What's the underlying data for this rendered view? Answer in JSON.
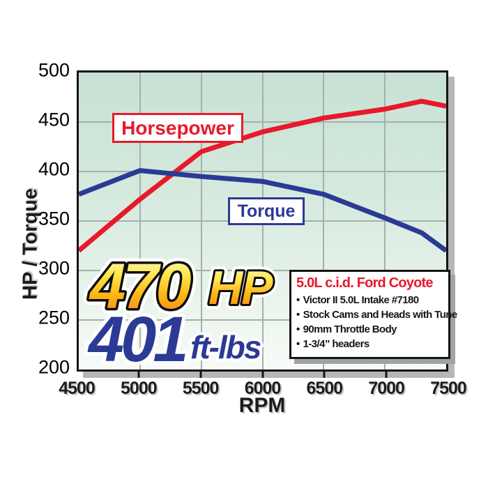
{
  "chart_data": {
    "type": "line",
    "title": "",
    "xlabel": "RPM",
    "ylabel": "HP / Torque",
    "xlim": [
      4500,
      7500
    ],
    "ylim": [
      200,
      500
    ],
    "x_ticks": [
      "4500",
      "5000",
      "5500",
      "6000",
      "6500",
      "7000",
      "7500"
    ],
    "y_ticks": [
      "500",
      "450",
      "400",
      "350",
      "300",
      "250",
      "200"
    ],
    "grid": true,
    "legend_position": "labeled boxes inside plot",
    "x": [
      4500,
      5000,
      5500,
      6000,
      6500,
      7000,
      7300,
      7500
    ],
    "series": [
      {
        "name": "Horsepower",
        "color": "#e8192b",
        "values": [
          320,
          372,
          420,
          440,
          454,
          463,
          471,
          466
        ]
      },
      {
        "name": "Torque",
        "color": "#2b3a94",
        "values": [
          377,
          401,
          395,
          390,
          377,
          353,
          338,
          320
        ]
      }
    ]
  },
  "curve_labels": {
    "horsepower": "Horsepower",
    "torque": "Torque"
  },
  "callout": {
    "hp_value": "470",
    "hp_unit": "HP",
    "tq_value": "401",
    "tq_unit": "ft-lbs"
  },
  "info_box": {
    "title": "5.0L c.i.d. Ford Coyote",
    "bullet_char": "•",
    "bullets": [
      "Victor II 5.0L Intake #7180",
      "Stock Cams and Heads with Tune",
      "90mm Throttle Body",
      "1-3/4” headers"
    ]
  },
  "colors": {
    "horsepower_red": "#e8192b",
    "torque_blue": "#2b3a94",
    "hp_text_gradient": [
      "#fffbe6",
      "#ffe850",
      "#fdb515",
      "#f47b20"
    ],
    "plot_bg_top": "#c6e1d4",
    "plot_bg_bottom": "#f8fbf8",
    "gridline": "#a5b0aa",
    "axis_text": "#1c1c1e"
  }
}
